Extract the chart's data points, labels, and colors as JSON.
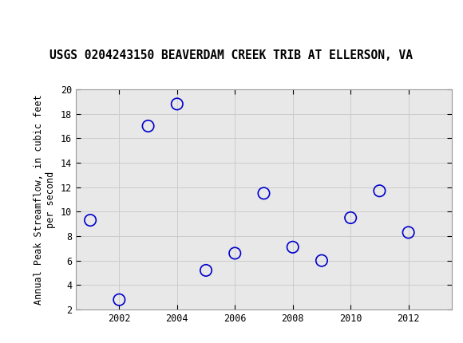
{
  "title": "USGS 0204243150 BEAVERDAM CREEK TRIB AT ELLERSON, VA",
  "ylabel_line1": "Annual Peak Streamflow, in cubic feet",
  "ylabel_line2": "per second",
  "years": [
    2001,
    2002,
    2003,
    2004,
    2005,
    2006,
    2007,
    2008,
    2009,
    2010,
    2011,
    2012
  ],
  "values": [
    9.3,
    2.8,
    17.0,
    18.8,
    5.2,
    6.6,
    11.5,
    7.1,
    6.0,
    9.5,
    11.7,
    8.3
  ],
  "xlim": [
    2000.5,
    2013.5
  ],
  "ylim": [
    2,
    20
  ],
  "xticks": [
    2002,
    2004,
    2006,
    2008,
    2010,
    2012
  ],
  "yticks": [
    2,
    4,
    6,
    8,
    10,
    12,
    14,
    16,
    18,
    20
  ],
  "marker_color": "#0000cc",
  "marker_size": 6,
  "grid_color": "#cccccc",
  "bg_color": "#ffffff",
  "plot_bg_color": "#e8e8e8",
  "header_bg_color": "#1a7a40",
  "title_fontsize": 10.5,
  "axis_label_fontsize": 8.5,
  "tick_fontsize": 8.5
}
